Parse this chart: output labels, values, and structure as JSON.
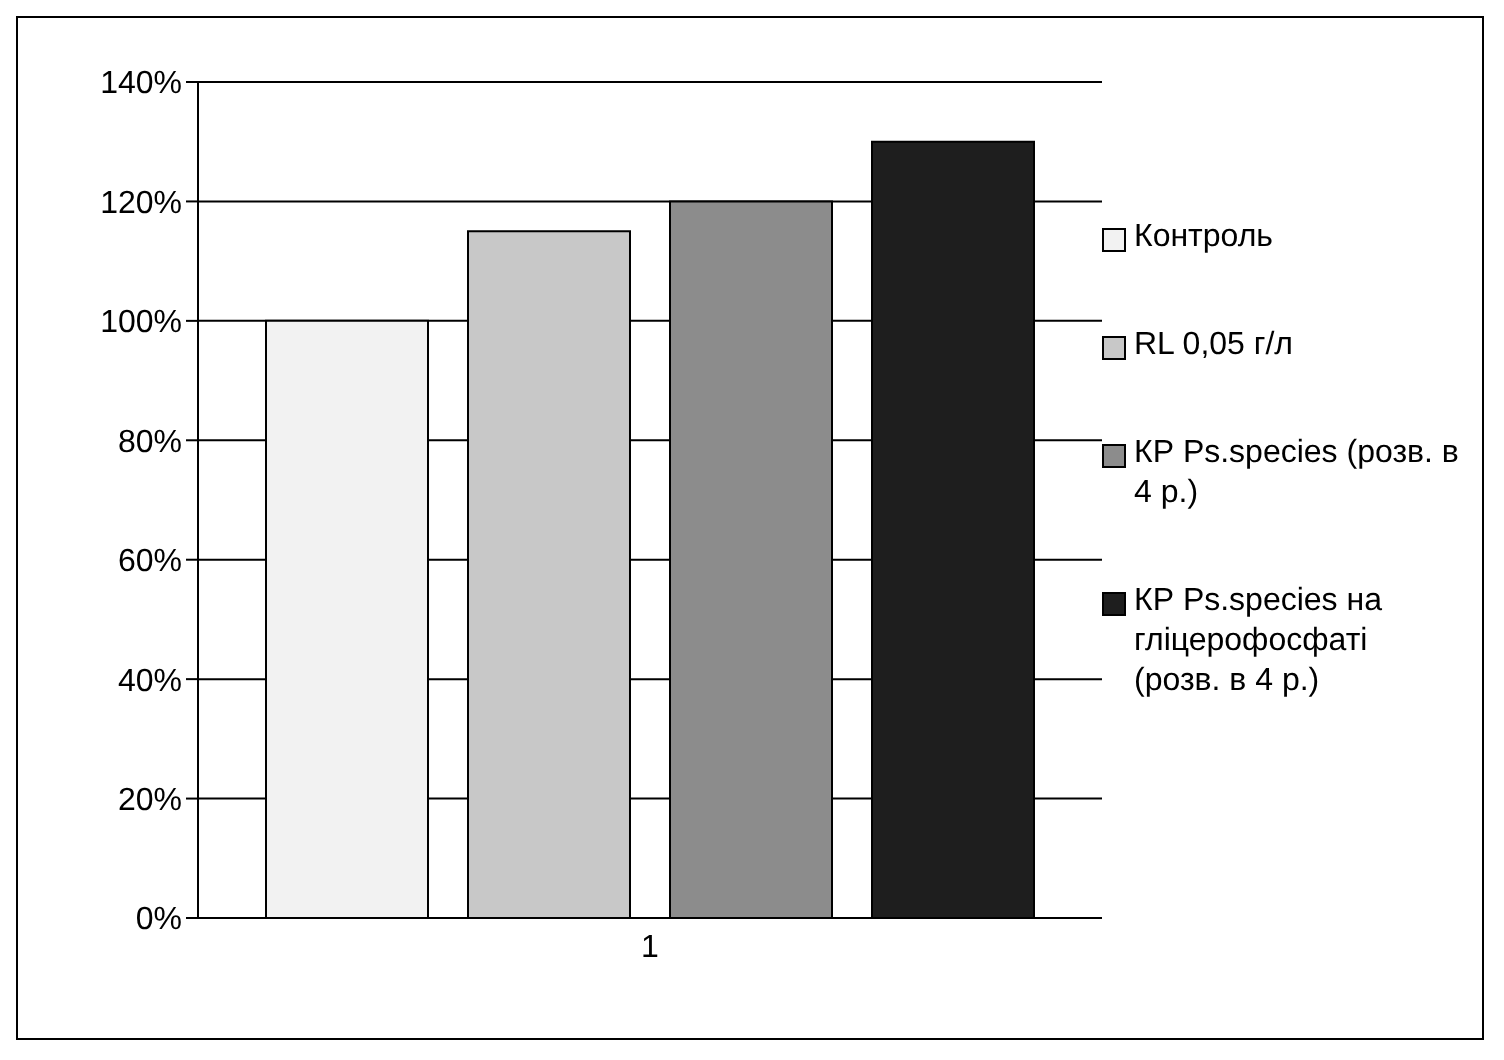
{
  "chart_data": {
    "type": "bar",
    "categories": [
      "1"
    ],
    "series": [
      {
        "name": "Контроль",
        "color": "#f2f2f2",
        "values": [
          100
        ]
      },
      {
        "name": "RL 0,05 г/л",
        "color": "#c8c8c8",
        "values": [
          115
        ]
      },
      {
        "name": "КР Ps.species (розв. в 4 р.)",
        "color": "#8c8c8c",
        "values": [
          120
        ]
      },
      {
        "name": "КР Ps.species на гліцерофосфаті (розв. в 4 р.)",
        "color": "#1e1e1e",
        "values": [
          130
        ]
      }
    ],
    "ylim": [
      0,
      140
    ],
    "yticks": [
      {
        "value": 0,
        "label": "0%"
      },
      {
        "value": 20,
        "label": "20%"
      },
      {
        "value": 40,
        "label": "40%"
      },
      {
        "value": 60,
        "label": "60%"
      },
      {
        "value": 80,
        "label": "80%"
      },
      {
        "value": 100,
        "label": "100%"
      },
      {
        "value": 120,
        "label": "120%"
      },
      {
        "value": 140,
        "label": "140%"
      }
    ],
    "grid": "y",
    "legend": "right"
  }
}
